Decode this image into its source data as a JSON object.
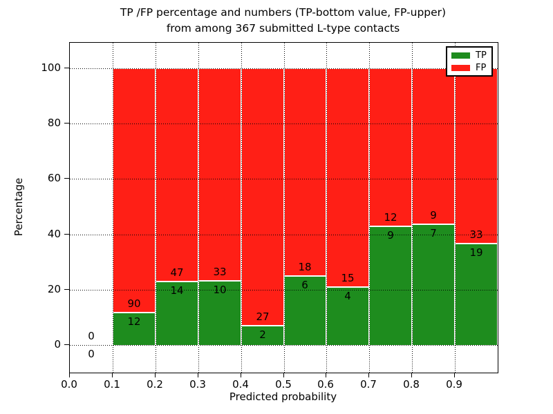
{
  "figure": {
    "title_line1": "TP /FP percentage and numbers (TP-bottom value, FP-upper)",
    "title_line2": "from among 367 submitted L-type contacts"
  },
  "chart_data": {
    "type": "bar",
    "stacked": true,
    "title": "TP /FP percentage and numbers (TP-bottom value, FP-upper)\nfrom among 367 submitted L-type contacts",
    "xlabel": "Predicted probability",
    "ylabel": "Percentage",
    "xlim": [
      0.0,
      1.0
    ],
    "ylim": [
      -10,
      110
    ],
    "x_ticks": [
      "0.0",
      "0.1",
      "0.2",
      "0.3",
      "0.4",
      "0.5",
      "0.6",
      "0.7",
      "0.8",
      "0.9"
    ],
    "y_ticks": [
      "0",
      "20",
      "40",
      "60",
      "80",
      "100"
    ],
    "y_tick_values": [
      0,
      20,
      40,
      60,
      80,
      100
    ],
    "grid": "dotted",
    "grid_color": "#000000",
    "bar_edge_color": "#ffffff",
    "total_contacts": 367,
    "legend": {
      "position": "upper right",
      "items": [
        {
          "label": "TP",
          "color": "#1e8c1e"
        },
        {
          "label": "FP",
          "color": "#ff1f16"
        }
      ]
    },
    "bins": [
      {
        "x0": 0.0,
        "x1": 0.1,
        "tp_count": 0,
        "fp_count": 0,
        "tp_pct": 0.0,
        "fp_pct": 0.0
      },
      {
        "x0": 0.1,
        "x1": 0.2,
        "tp_count": 12,
        "fp_count": 90,
        "tp_pct": 11.76,
        "fp_pct": 88.24
      },
      {
        "x0": 0.2,
        "x1": 0.3,
        "tp_count": 14,
        "fp_count": 47,
        "tp_pct": 22.95,
        "fp_pct": 77.05
      },
      {
        "x0": 0.3,
        "x1": 0.4,
        "tp_count": 10,
        "fp_count": 33,
        "tp_pct": 23.26,
        "fp_pct": 76.74
      },
      {
        "x0": 0.4,
        "x1": 0.5,
        "tp_count": 2,
        "fp_count": 27,
        "tp_pct": 6.9,
        "fp_pct": 93.1
      },
      {
        "x0": 0.5,
        "x1": 0.6,
        "tp_count": 6,
        "fp_count": 18,
        "tp_pct": 25.0,
        "fp_pct": 75.0
      },
      {
        "x0": 0.6,
        "x1": 0.7,
        "tp_count": 4,
        "fp_count": 15,
        "tp_pct": 21.05,
        "fp_pct": 78.95
      },
      {
        "x0": 0.7,
        "x1": 0.8,
        "tp_count": 9,
        "fp_count": 12,
        "tp_pct": 42.86,
        "fp_pct": 57.14
      },
      {
        "x0": 0.8,
        "x1": 0.9,
        "tp_count": 7,
        "fp_count": 9,
        "tp_pct": 43.75,
        "fp_pct": 56.25
      },
      {
        "x0": 0.9,
        "x1": 1.0,
        "tp_count": 19,
        "fp_count": 33,
        "tp_pct": 36.54,
        "fp_pct": 63.46
      }
    ]
  }
}
